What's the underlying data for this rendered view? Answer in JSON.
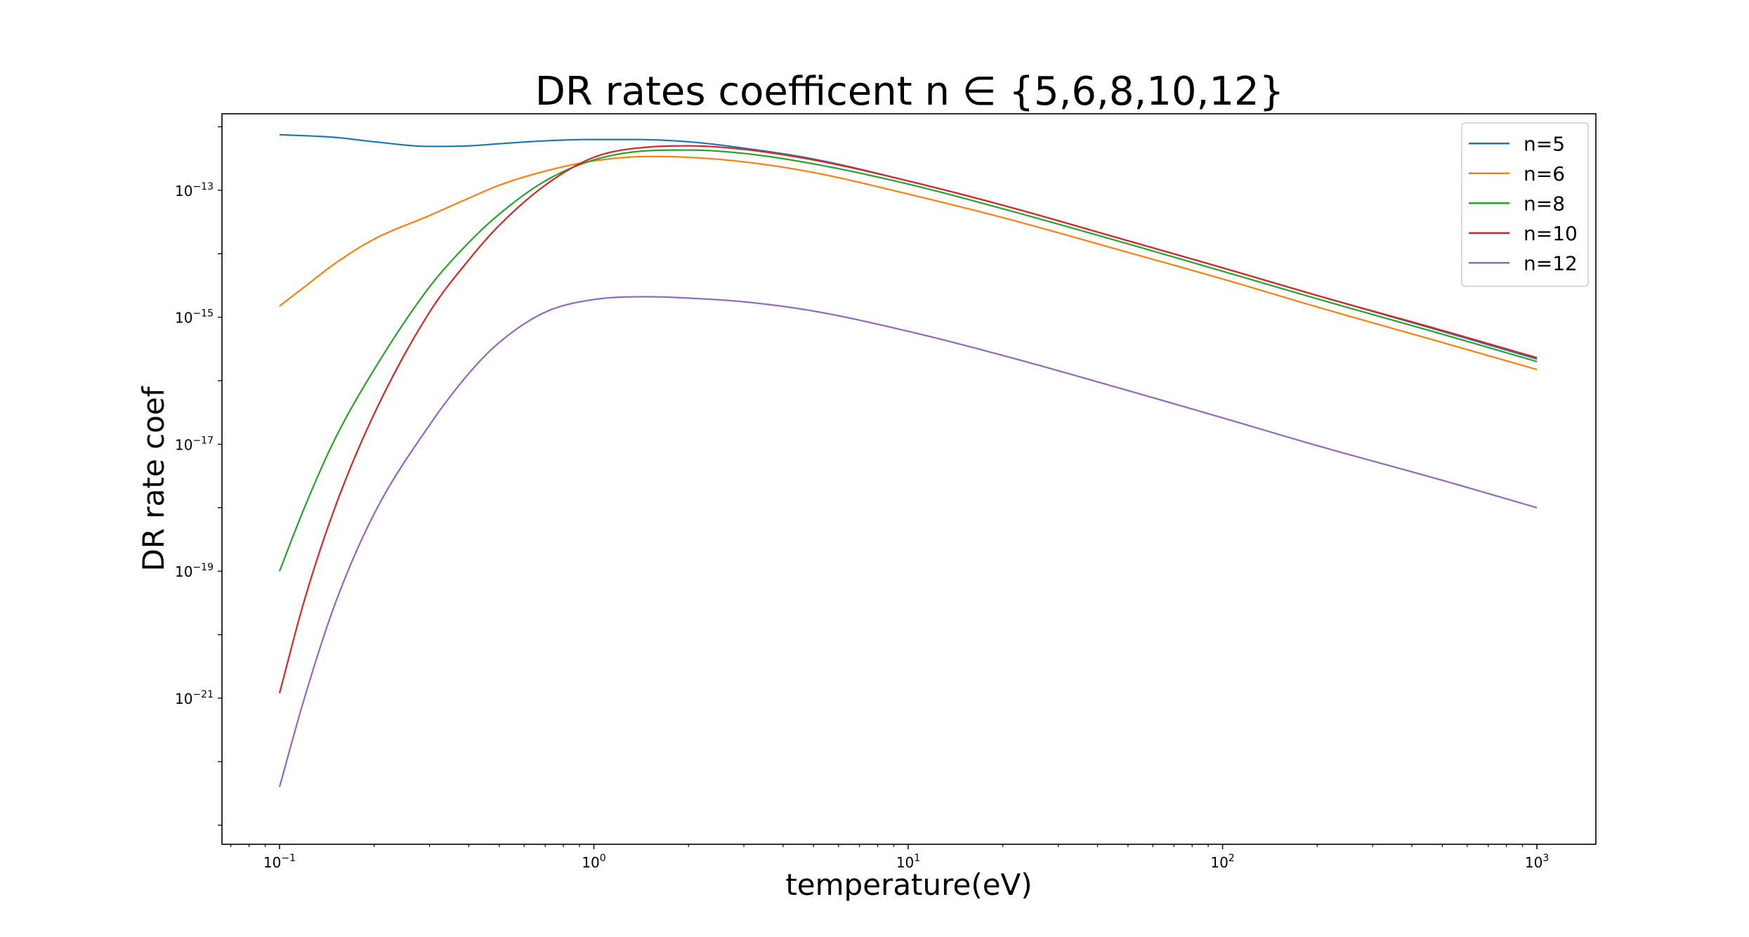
{
  "chart_data": {
    "type": "line",
    "title": "DR rates coefficent n ∈ {5,6,8,10,12}",
    "xlabel": "temperature(eV)",
    "ylabel": "DR rate coef",
    "xscale": "log",
    "yscale": "log",
    "xlim": [
      0.0656,
      1540
    ],
    "ylim": [
      5e-24,
      1.6e-12
    ],
    "grid": false,
    "legend_position": "top-right",
    "x_ticks": [
      {
        "value": 0.1,
        "base": "10",
        "exp": "−1"
      },
      {
        "value": 1,
        "base": "10",
        "exp": "0"
      },
      {
        "value": 10,
        "base": "10",
        "exp": "1"
      },
      {
        "value": 100,
        "base": "10",
        "exp": "2"
      },
      {
        "value": 1000,
        "base": "10",
        "exp": "3"
      }
    ],
    "y_ticks": [
      {
        "value": 1e-21,
        "base": "10",
        "exp": "−21"
      },
      {
        "value": 1e-19,
        "base": "10",
        "exp": "−19"
      },
      {
        "value": 1e-17,
        "base": "10",
        "exp": "−17"
      },
      {
        "value": 1e-15,
        "base": "10",
        "exp": "−15"
      },
      {
        "value": 1e-13,
        "base": "10",
        "exp": "−13"
      }
    ],
    "series": [
      {
        "name": "n=5",
        "color": "#1f77b4",
        "x": [
          0.1,
          0.15,
          0.2,
          0.3,
          0.4,
          0.5,
          0.7,
          1.0,
          1.3,
          2.0,
          3.0,
          5.0,
          10,
          20,
          50,
          100,
          200,
          500,
          1000
        ],
        "y": [
          7.5e-13,
          6.8e-13,
          5.8e-13,
          4.9e-13,
          5e-13,
          5.4e-13,
          6e-13,
          6.3e-13,
          6.3e-13,
          5.8e-13,
          4.6e-13,
          3.1e-13,
          1.4e-13,
          5.8e-14,
          1.6e-14,
          6e-15,
          2.2e-15,
          6e-16,
          2.2e-16
        ]
      },
      {
        "name": "n=6",
        "color": "#ff7f0e",
        "x": [
          0.1,
          0.12,
          0.15,
          0.2,
          0.3,
          0.4,
          0.5,
          0.7,
          1.0,
          1.5,
          2.0,
          3.0,
          5.0,
          10,
          20,
          50,
          100,
          200,
          500,
          1000
        ],
        "y": [
          1.5e-15,
          3e-15,
          7e-15,
          1.7e-14,
          4e-14,
          7.5e-14,
          1.2e-13,
          2e-13,
          2.9e-13,
          3.4e-13,
          3.3e-13,
          2.8e-13,
          1.9e-13,
          8.7e-14,
          3.7e-14,
          1.05e-14,
          4e-15,
          1.45e-15,
          4e-16,
          1.5e-16
        ]
      },
      {
        "name": "n=8",
        "color": "#2ca02c",
        "x": [
          0.1,
          0.12,
          0.15,
          0.2,
          0.3,
          0.4,
          0.5,
          0.7,
          1.0,
          1.5,
          2.0,
          3.0,
          5.0,
          10,
          20,
          50,
          100,
          200,
          500,
          1000
        ],
        "y": [
          1e-19,
          1e-18,
          1.2e-17,
          1.5e-16,
          3e-15,
          1.5e-14,
          4.2e-14,
          1.4e-13,
          3e-13,
          4.2e-13,
          4.3e-13,
          3.8e-13,
          2.6e-13,
          1.25e-13,
          5.1e-14,
          1.43e-14,
          5.3e-15,
          1.95e-15,
          5.4e-16,
          2e-16
        ]
      },
      {
        "name": "n=10",
        "color": "#d62728",
        "x": [
          0.1,
          0.12,
          0.15,
          0.2,
          0.3,
          0.4,
          0.5,
          0.7,
          1.0,
          1.5,
          2.0,
          3.0,
          5.0,
          10,
          20,
          50,
          100,
          200,
          500,
          1000
        ],
        "y": [
          1.2e-21,
          3.5e-20,
          1e-18,
          3e-17,
          1.2e-15,
          8e-15,
          2.8e-14,
          1.2e-13,
          3.3e-13,
          4.8e-13,
          5e-13,
          4.4e-13,
          3e-13,
          1.4e-13,
          5.8e-14,
          1.6e-14,
          6e-15,
          2.2e-15,
          6.2e-16,
          2.3e-16
        ]
      },
      {
        "name": "n=12",
        "color": "#9467bd",
        "x": [
          0.1,
          0.12,
          0.15,
          0.2,
          0.3,
          0.4,
          0.5,
          0.7,
          1.0,
          1.5,
          2.0,
          3.0,
          5.0,
          10,
          20,
          50,
          100,
          200,
          500,
          1000
        ],
        "y": [
          4e-23,
          1e-21,
          3e-20,
          8e-19,
          2e-17,
          1.3e-16,
          4e-16,
          1.2e-15,
          1.9e-15,
          2.1e-15,
          2e-15,
          1.75e-15,
          1.25e-15,
          6e-16,
          2.5e-16,
          7e-17,
          2.6e-17,
          9.5e-18,
          2.7e-18,
          1e-18
        ]
      }
    ]
  }
}
